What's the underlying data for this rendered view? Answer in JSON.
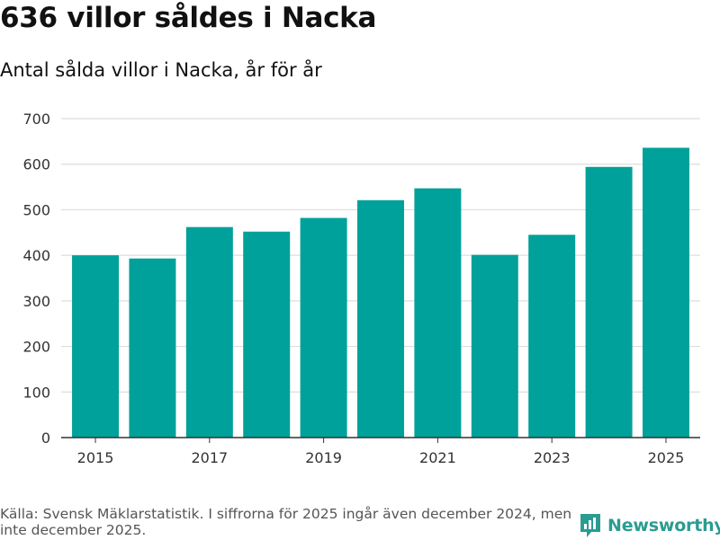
{
  "title": "636 villor såldes i Nacka",
  "subtitle": "Antal sålda villor i Nacka, år för år",
  "chart_data": {
    "type": "bar",
    "title": "636 villor såldes i Nacka",
    "subtitle": "Antal sålda villor i Nacka, år för år",
    "categories": [
      "2015",
      "2016",
      "2017",
      "2018",
      "2019",
      "2020",
      "2021",
      "2022",
      "2023",
      "2024",
      "2025"
    ],
    "values": [
      400,
      393,
      462,
      452,
      482,
      521,
      547,
      401,
      445,
      594,
      636
    ],
    "x_tick_labels": [
      "2015",
      "2017",
      "2019",
      "2021",
      "2023",
      "2025"
    ],
    "y_ticks": [
      0,
      100,
      200,
      300,
      400,
      500,
      600,
      700
    ],
    "ylim": [
      0,
      700
    ],
    "xlabel": "",
    "ylabel": "",
    "grid": true,
    "bar_color": "#00a19a"
  },
  "source": "Källa: Svensk Mäklarstatistik. I siffrorna för 2025 ingår även december 2024, men inte december 2025.",
  "logo": {
    "text": "Newsworthy",
    "icon": "newsworthy-logo-icon",
    "color": "#2a9c92"
  }
}
